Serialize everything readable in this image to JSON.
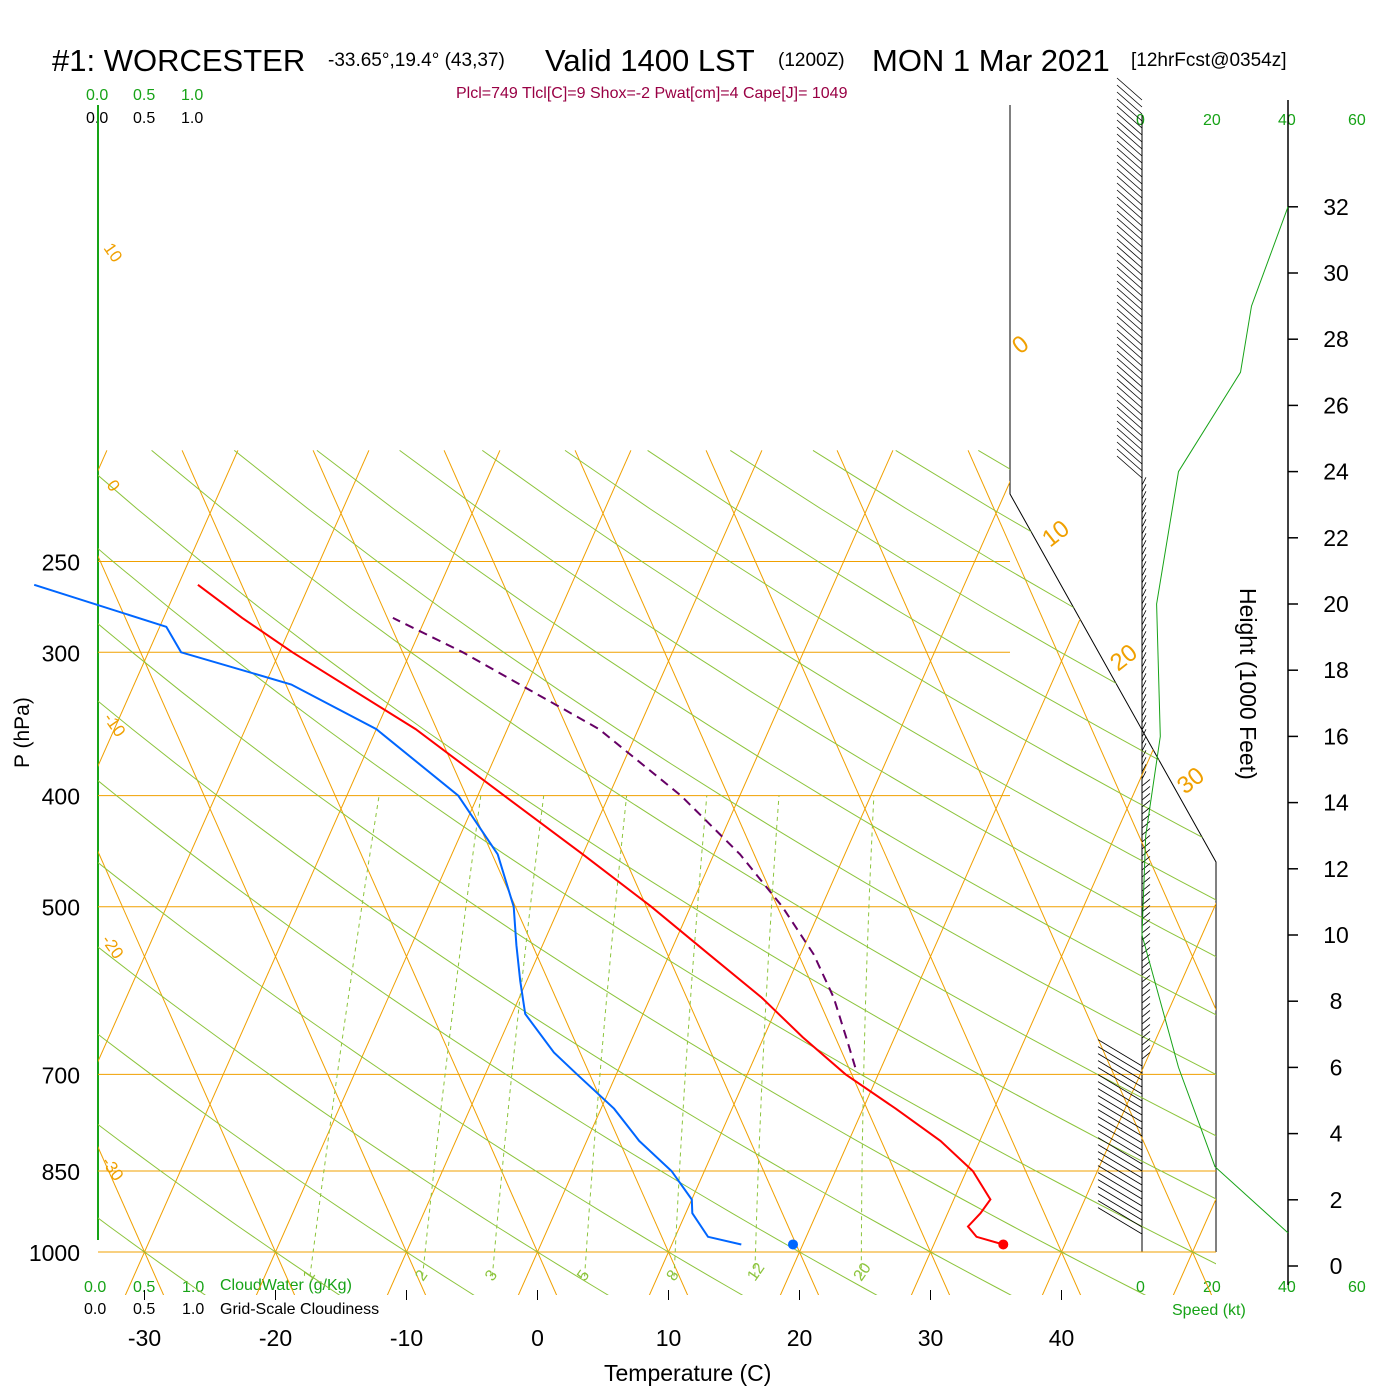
{
  "header": {
    "station": "#1: WORCESTER",
    "coords": "-33.65°,19.4° (43,37)",
    "valid": "Valid 1400 LST",
    "zulu": "(1200Z)",
    "date": "MON 1 Mar 2021",
    "forecast": "[12hrFcst@0354z]"
  },
  "indices": "Plcl=749 Tlcl[C]=9 Shox=-2 Pwat[cm]=4 Cape[J]= 1049",
  "colors": {
    "temperature": "#ff0000",
    "dewpoint": "#0066ff",
    "parcel": "#660066",
    "isotherm_isobar": "#f0a000",
    "dry_adiabat": "#8cc43c",
    "mixing_ratio": "#8cc43c",
    "green_text": "#17a317"
  },
  "labels": {
    "ylabel": "P (hPa)",
    "xlabel": "Temperature (C)",
    "height_label": "Height (1000 Feet)",
    "cloudwater_label": "CloudWater (g/Kg)",
    "cloudiness_label": "Grid-Scale Cloudiness",
    "speed_label": "Speed (kt)",
    "scale_top_green": [
      "0.0",
      "0.5",
      "1.0"
    ],
    "scale_top_black": [
      "0.0",
      "0.5",
      "1.0"
    ],
    "scale_bottom_green": [
      "0.0",
      "0.5",
      "1.0"
    ],
    "scale_bottom_black": [
      "0.0",
      "0.5",
      "1.0"
    ],
    "speed_ticks": [
      "0",
      "20",
      "40",
      "60"
    ]
  },
  "chart_data": {
    "type": "line",
    "subtype": "skew-T log-p sounding",
    "pressure_ticks": [
      250,
      300,
      400,
      500,
      700,
      850,
      1000
    ],
    "temperature_ticks": [
      -30,
      -20,
      -10,
      0,
      10,
      20,
      30,
      40
    ],
    "height_ticks_kft": [
      0,
      2,
      4,
      6,
      8,
      10,
      12,
      14,
      16,
      18,
      20,
      22,
      24,
      26,
      28,
      30,
      32
    ],
    "isotherm_labels": [
      "10",
      "0",
      "-10",
      "-20",
      "-30",
      "0",
      "10",
      "20",
      "30"
    ],
    "mixing_ratio_labels": [
      "1",
      "2",
      "3",
      "5",
      "8",
      "12",
      "20"
    ],
    "mixing_ratio_values_gkg": [
      1,
      2,
      3,
      5,
      8,
      12,
      20
    ],
    "series": [
      {
        "name": "Temperature",
        "color": "#ff0000",
        "points": [
          {
            "p": 985,
            "t": 35.3
          },
          {
            "p": 970,
            "t": 33.0
          },
          {
            "p": 950,
            "t": 32.0
          },
          {
            "p": 925,
            "t": 32.5
          },
          {
            "p": 900,
            "t": 32.8
          },
          {
            "p": 850,
            "t": 30.5
          },
          {
            "p": 800,
            "t": 27.0
          },
          {
            "p": 750,
            "t": 22.5
          },
          {
            "p": 700,
            "t": 17.5
          },
          {
            "p": 650,
            "t": 13.0
          },
          {
            "p": 600,
            "t": 8.5
          },
          {
            "p": 550,
            "t": 3.0
          },
          {
            "p": 500,
            "t": -3.0
          },
          {
            "p": 450,
            "t": -10.0
          },
          {
            "p": 400,
            "t": -18.0
          },
          {
            "p": 350,
            "t": -27.0
          },
          {
            "p": 300,
            "t": -39.0
          },
          {
            "p": 280,
            "t": -44.0
          },
          {
            "p": 262,
            "t": -48.5
          }
        ]
      },
      {
        "name": "Dewpoint",
        "color": "#0066ff",
        "points": [
          {
            "p": 985,
            "t": 15.3
          },
          {
            "p": 970,
            "t": 12.5
          },
          {
            "p": 925,
            "t": 10.5
          },
          {
            "p": 900,
            "t": 10.0
          },
          {
            "p": 850,
            "t": 7.5
          },
          {
            "p": 800,
            "t": 4.0
          },
          {
            "p": 750,
            "t": 1.0
          },
          {
            "p": 700,
            "t": -3.0
          },
          {
            "p": 670,
            "t": -5.5
          },
          {
            "p": 620,
            "t": -9.0
          },
          {
            "p": 580,
            "t": -10.5
          },
          {
            "p": 540,
            "t": -12.0
          },
          {
            "p": 500,
            "t": -13.5
          },
          {
            "p": 450,
            "t": -16.5
          },
          {
            "p": 400,
            "t": -21.5
          },
          {
            "p": 350,
            "t": -30.0
          },
          {
            "p": 320,
            "t": -38.0
          },
          {
            "p": 300,
            "t": -47.5
          },
          {
            "p": 285,
            "t": -49.5
          },
          {
            "p": 262,
            "t": -61.0
          }
        ]
      },
      {
        "name": "Parcel",
        "color": "#660066",
        "dashed": true,
        "points": [
          {
            "p": 690,
            "t": 18.0
          },
          {
            "p": 650,
            "t": 16.3
          },
          {
            "p": 600,
            "t": 14.0
          },
          {
            "p": 550,
            "t": 11.0
          },
          {
            "p": 500,
            "t": 7.0
          },
          {
            "p": 450,
            "t": 2.0
          },
          {
            "p": 400,
            "t": -4.5
          },
          {
            "p": 350,
            "t": -13.0
          },
          {
            "p": 300,
            "t": -26.0
          },
          {
            "p": 280,
            "t": -32.5
          }
        ]
      }
    ],
    "surface_markers": {
      "temperature": {
        "p": 985,
        "t": 35.3
      },
      "dewpoint": {
        "p": 985,
        "t": 15.3
      }
    },
    "wind_profile_kt": [
      {
        "z_kft": 1.0,
        "speed": 40
      },
      {
        "z_kft": 3.0,
        "speed": 20
      },
      {
        "z_kft": 6.0,
        "speed": 10
      },
      {
        "z_kft": 10.0,
        "speed": 0
      },
      {
        "z_kft": 13.0,
        "speed": 1
      },
      {
        "z_kft": 16.0,
        "speed": 5
      },
      {
        "z_kft": 20.0,
        "speed": 4
      },
      {
        "z_kft": 24.0,
        "speed": 10
      },
      {
        "z_kft": 27.0,
        "speed": 27
      },
      {
        "z_kft": 29.0,
        "speed": 30
      },
      {
        "z_kft": 32.0,
        "speed": 40
      }
    ],
    "ylabel": "P (hPa)",
    "xlabel": "Temperature (C)",
    "xlim": [
      -35,
      55
    ],
    "ylim": [
      1050,
      250
    ],
    "grid": true,
    "y_scale": "log"
  }
}
